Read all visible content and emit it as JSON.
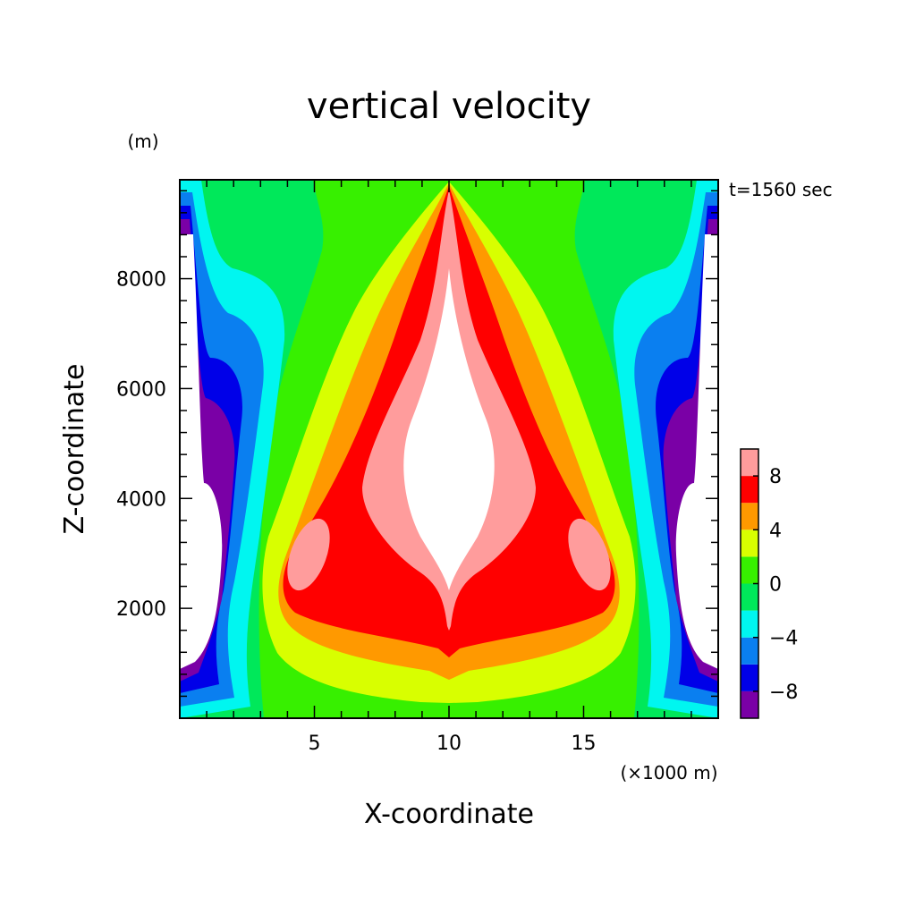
{
  "chart_data": {
    "type": "contour",
    "title": "vertical velocity",
    "xlabel": "X-coordinate",
    "ylabel": "Z-coordinate",
    "x_unit": "(×1000 m)",
    "y_unit": "(m)",
    "time_label": "t=1560 sec",
    "xlim": [
      0,
      20
    ],
    "ylim": [
      0,
      9800
    ],
    "x_ticks": [
      "5",
      "10",
      "15"
    ],
    "x_tick_values": [
      5,
      10,
      15
    ],
    "y_ticks": [
      "2000",
      "4000",
      "6000",
      "8000"
    ],
    "y_tick_values": [
      2000,
      4000,
      6000,
      8000
    ],
    "colorbar": {
      "levels": [
        -10,
        -8,
        -6,
        -4,
        -2,
        0,
        2,
        4,
        6,
        8,
        10
      ],
      "tick_labels": [
        "8",
        "4",
        "0",
        "−4",
        "−8"
      ],
      "tick_values": [
        8,
        4,
        0,
        -4,
        -8
      ],
      "colors": [
        "#7a00a6",
        "#0000e8",
        "#0a7ff0",
        "#00f6f0",
        "#00e85a",
        "#37f000",
        "#d8ff00",
        "#ff9900",
        "#ff0000",
        "#ff9c9c"
      ]
    },
    "field_notes": "symmetric about x=10: central updraft with maximum above 10 near z≈4500; downdraft below -10 near both side walls"
  }
}
